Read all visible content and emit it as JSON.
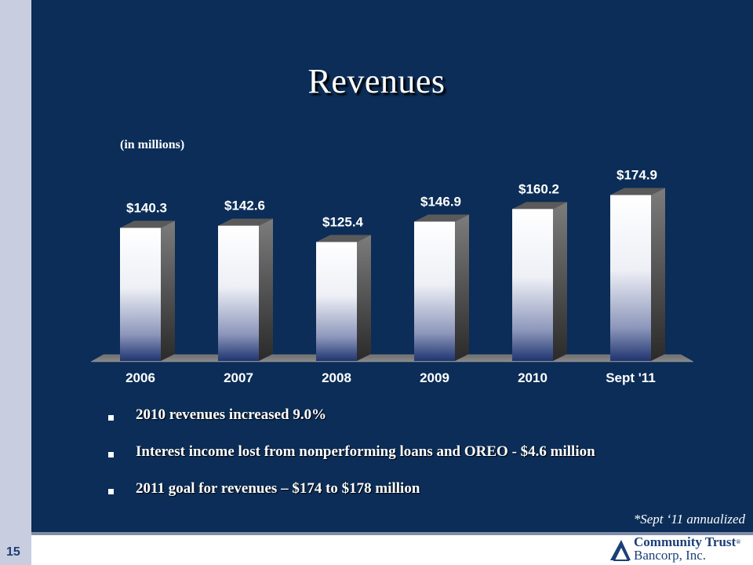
{
  "title": "Revenues",
  "units_note": "(in millions)",
  "chart_data": {
    "type": "bar",
    "categories": [
      "2006",
      "2007",
      "2008",
      "2009",
      "2010",
      "Sept '11"
    ],
    "values": [
      140.3,
      142.6,
      125.4,
      146.9,
      160.2,
      174.9
    ],
    "data_labels": [
      "$140.3",
      "$142.6",
      "$125.4",
      "$146.9",
      "$160.2",
      "$174.9"
    ],
    "ylim": [
      0,
      180
    ],
    "grid": false,
    "legend": "none",
    "style": "3d"
  },
  "bullets": [
    "2010 revenues increased 9.0%",
    "Interest income lost from nonperforming loans and OREO - $4.6 million",
    "2011 goal for revenues – $174 to $178 million"
  ],
  "footnote": "*Sept ‘11 annualized",
  "page_number": "15",
  "logo": {
    "line1": "Community Trust",
    "reg": "®",
    "line2": "Bancorp, Inc."
  },
  "colors": {
    "background": "#0b2d57",
    "bar_top": "#ffffff",
    "bar_bottom": "#1f3470",
    "text": "#ffffff",
    "brand": "#1b3f78"
  }
}
